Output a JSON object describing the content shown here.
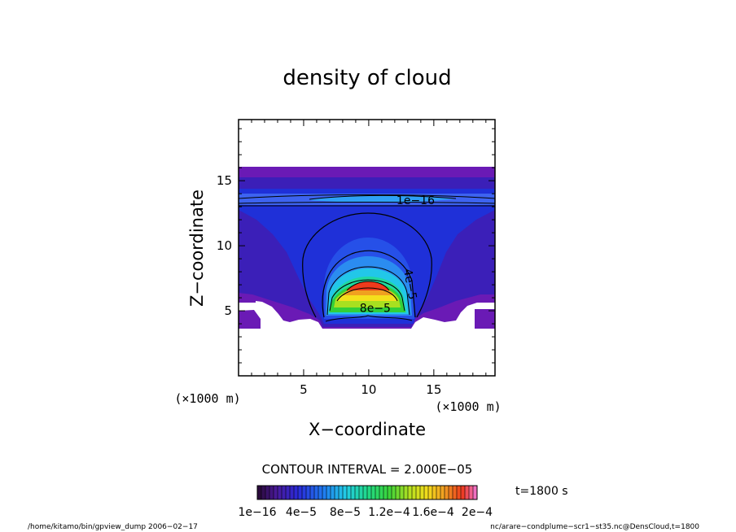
{
  "chart_data": {
    "type": "contour",
    "title": "density of cloud",
    "xlabel": "X−coordinate",
    "ylabel": "Z−coordinate",
    "x_unit": "(×1000 m)",
    "y_unit": "(×1000 m)",
    "xlim": [
      0,
      19.7
    ],
    "ylim": [
      0,
      19.7
    ],
    "x_ticks": [
      {
        "value": 5,
        "label": "5"
      },
      {
        "value": 10,
        "label": "10"
      },
      {
        "value": 15,
        "label": "15"
      }
    ],
    "y_ticks": [
      {
        "value": 5,
        "label": "5"
      },
      {
        "value": 10,
        "label": "10"
      },
      {
        "value": 15,
        "label": "15"
      }
    ],
    "contour_interval_text": "CONTOUR INTERVAL = 2.000E−05",
    "contour_labels": [
      {
        "text": "1e−16",
        "x": 13.6,
        "y": 13.2
      },
      {
        "text": "4e−5",
        "x": 12.9,
        "y": 7.0
      },
      {
        "text": "8e−5",
        "x": 10.5,
        "y": 4.9
      }
    ],
    "colorbar": {
      "tick_labels": [
        "1e−16",
        "4e−5",
        "8e−5",
        "1.2e−4",
        "1.6e−4",
        "2e−4"
      ],
      "values": [
        1e-16,
        4e-05,
        8e-05,
        0.00012,
        0.00016,
        0.0002
      ]
    },
    "time_label": "t=1800 s"
  },
  "footer": {
    "left": "/home/kitamo/bin/gpview_dump  2006−02−17",
    "right": "nc/arare−condplume−scr1−st35.nc@DensCloud,t=1800"
  }
}
